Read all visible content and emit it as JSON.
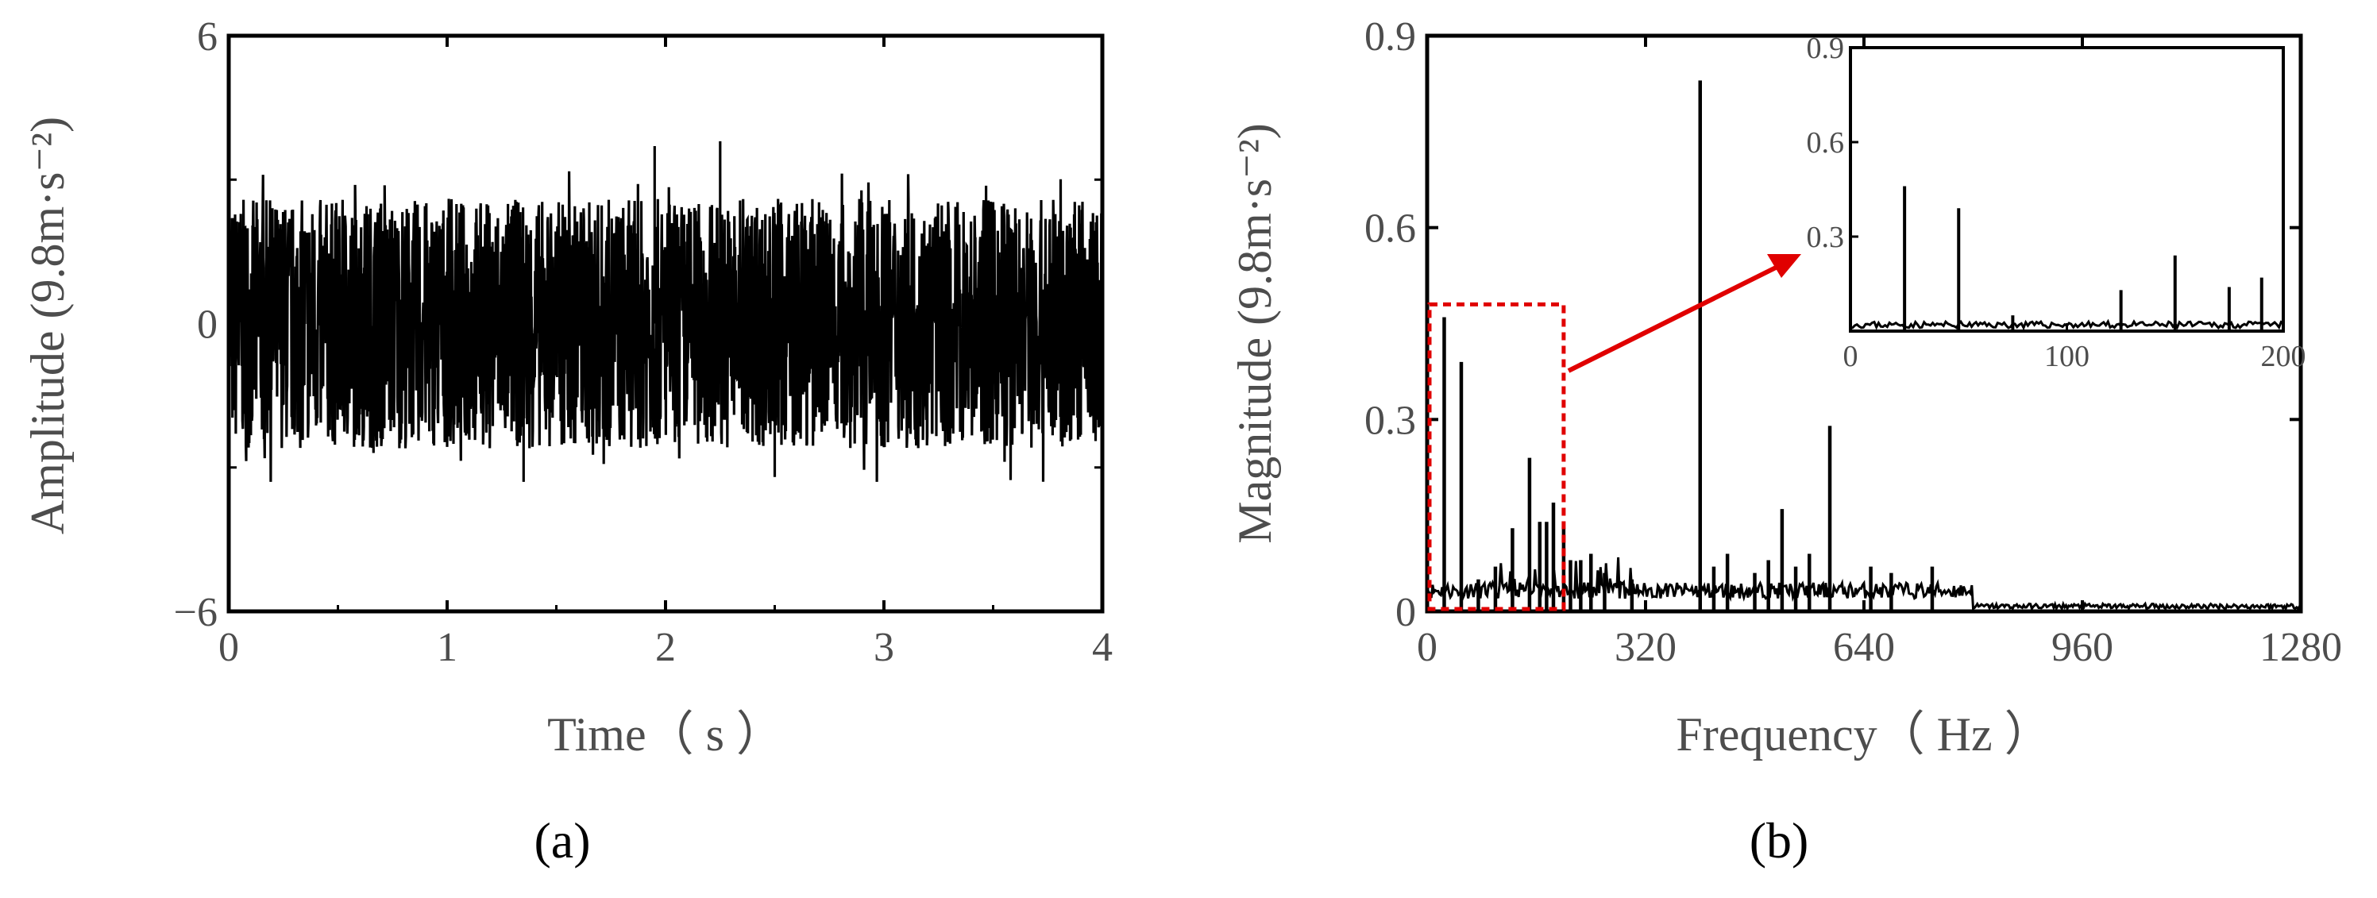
{
  "chart_data": [
    {
      "type": "line",
      "panel_label": "(a)",
      "xlabel": "Time（ s ）",
      "ylabel": "Amplitude (9.8m·s⁻²)",
      "xlim": [
        0,
        4
      ],
      "ylim": [
        -6,
        6
      ],
      "x_ticks": [
        "0",
        "1",
        "2",
        "3",
        "4"
      ],
      "y_ticks": [
        "−6",
        "0",
        "6"
      ],
      "description_values": {
        "signal_peak_max": 3.7,
        "signal_peak_min": -3.3,
        "typical_envelope": 2.6
      },
      "grid": false
    },
    {
      "type": "line",
      "panel_label": "(b)",
      "xlabel": "Frequency（ Hz ）",
      "ylabel": "Magnitude (9.8m·s⁻²)",
      "xlim": [
        0,
        1280
      ],
      "ylim": [
        0,
        0.9
      ],
      "x_ticks": [
        "0",
        "320",
        "640",
        "960",
        "1280"
      ],
      "y_ticks": [
        "0",
        "0.3",
        "0.6",
        "0.9"
      ],
      "peaks": {
        "x": [
          25,
          50,
          75,
          100,
          125,
          150,
          165,
          175,
          185,
          200,
          210,
          225,
          240,
          260,
          300,
          400,
          420,
          440,
          480,
          500,
          520,
          540,
          560,
          590,
          650,
          680,
          740
        ],
        "y": [
          0.46,
          0.39,
          0.05,
          0.07,
          0.13,
          0.24,
          0.14,
          0.14,
          0.17,
          0.13,
          0.08,
          0.08,
          0.09,
          0.06,
          0.05,
          0.83,
          0.07,
          0.09,
          0.06,
          0.08,
          0.16,
          0.07,
          0.09,
          0.29,
          0.07,
          0.06,
          0.07
        ]
      },
      "highlight_box": {
        "x_range": [
          0,
          200
        ],
        "y_range": [
          0,
          0.48
        ],
        "style": "red dashed"
      },
      "inset": {
        "xlim": [
          0,
          200
        ],
        "ylim": [
          0,
          0.9
        ],
        "x_ticks": [
          "0",
          "100",
          "200"
        ],
        "y_ticks": [
          "0.3",
          "0.6",
          "0.9"
        ],
        "peaks": {
          "x": [
            25,
            50,
            75,
            125,
            150,
            175,
            190,
            200
          ],
          "y": [
            0.46,
            0.39,
            0.05,
            0.13,
            0.24,
            0.14,
            0.17,
            0.13
          ]
        }
      },
      "grid": false
    }
  ]
}
